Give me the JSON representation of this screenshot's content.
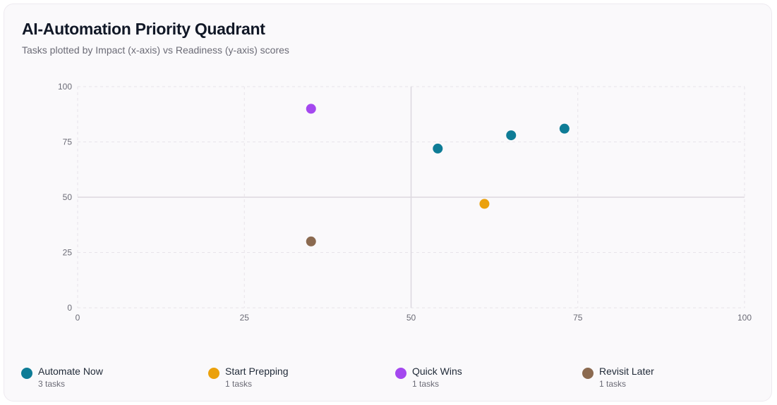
{
  "header": {
    "title": "AI-Automation Priority Quadrant",
    "subtitle": "Tasks plotted by Impact (x-axis) vs Readiness (y-axis) scores"
  },
  "chart_data": {
    "type": "scatter",
    "title": "AI-Automation Priority Quadrant",
    "subtitle": "Tasks plotted by Impact (x-axis) vs Readiness (y-axis) scores",
    "xlabel": "",
    "ylabel": "",
    "xlim": [
      0,
      100
    ],
    "ylim": [
      0,
      100
    ],
    "xticks": [
      0,
      25,
      50,
      75,
      100
    ],
    "yticks": [
      0,
      25,
      50,
      75,
      100
    ],
    "grid": true,
    "quadrant_dividers": {
      "x": 50,
      "y": 50
    },
    "legend_position": "bottom",
    "series": [
      {
        "name": "Automate Now",
        "color": "#0e7c96",
        "count_label": "3 tasks",
        "points": [
          {
            "x": 54,
            "y": 72
          },
          {
            "x": 65,
            "y": 78
          },
          {
            "x": 73,
            "y": 81
          }
        ]
      },
      {
        "name": "Start Prepping",
        "color": "#eba10c",
        "count_label": "1 tasks",
        "points": [
          {
            "x": 61,
            "y": 47
          }
        ]
      },
      {
        "name": "Quick Wins",
        "color": "#a448ef",
        "count_label": "1 tasks",
        "points": [
          {
            "x": 35,
            "y": 90
          }
        ]
      },
      {
        "name": "Revisit Later",
        "color": "#8b6a50",
        "count_label": "1 tasks",
        "points": [
          {
            "x": 35,
            "y": 30
          }
        ]
      }
    ]
  }
}
